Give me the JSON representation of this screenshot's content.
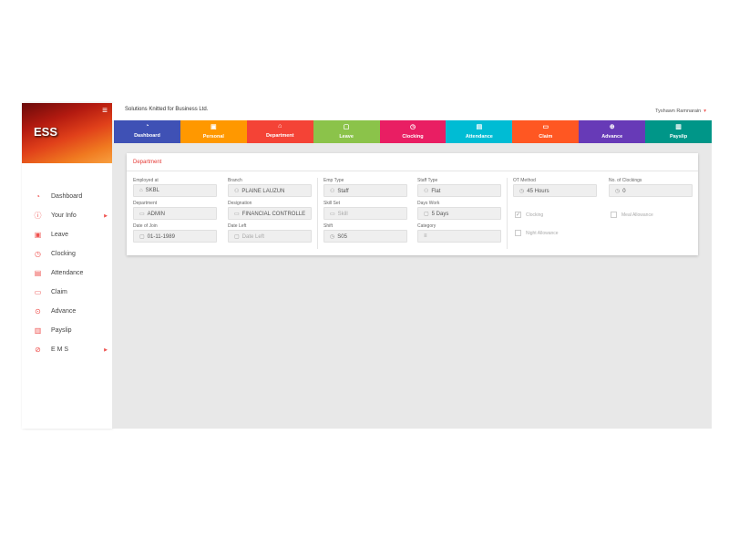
{
  "app": {
    "logo": "ESS",
    "company": "Solutions Knitted for Business Ltd.",
    "user": "Tyshawn Ramnarain"
  },
  "sidebar": {
    "items": [
      {
        "label": "Dashboard",
        "icon": "dashboard-icon",
        "glyph": "◔"
      },
      {
        "label": "Your Info",
        "icon": "info-icon",
        "glyph": "ⓘ",
        "submenu": true
      },
      {
        "label": "Leave",
        "icon": "calendar-icon",
        "glyph": "▣"
      },
      {
        "label": "Clocking",
        "icon": "clock-icon",
        "glyph": "◷"
      },
      {
        "label": "Attendance",
        "icon": "attendance-icon",
        "glyph": "▤"
      },
      {
        "label": "Claim",
        "icon": "card-icon",
        "glyph": "▭"
      },
      {
        "label": "Advance",
        "icon": "money-icon",
        "glyph": "⊙"
      },
      {
        "label": "Payslip",
        "icon": "payslip-icon",
        "glyph": "▥"
      },
      {
        "label": "E M S",
        "icon": "check-circle-icon",
        "glyph": "⊘",
        "submenu": true
      }
    ]
  },
  "tabs": [
    {
      "label": "Dashboard",
      "color": "#3f51b5",
      "glyph": "◔"
    },
    {
      "label": "Personal",
      "color": "#ff9800",
      "glyph": "▣"
    },
    {
      "label": "Department",
      "color": "#f44336",
      "glyph": "⌂"
    },
    {
      "label": "Leave",
      "color": "#8bc34a",
      "glyph": "▢"
    },
    {
      "label": "Clocking",
      "color": "#e91e63",
      "glyph": "◷"
    },
    {
      "label": "Attendance",
      "color": "#00bcd4",
      "glyph": "▤"
    },
    {
      "label": "Claim",
      "color": "#ff5722",
      "glyph": "▭"
    },
    {
      "label": "Advance",
      "color": "#673ab7",
      "glyph": "⊕"
    },
    {
      "label": "Payslip",
      "color": "#009688",
      "glyph": "▥"
    }
  ],
  "card": {
    "title": "Department",
    "fields": [
      {
        "label": "Employed at",
        "value": "SKBL",
        "glyph": "⌂"
      },
      {
        "label": "Branch",
        "value": "PLAINE LAUZUN",
        "glyph": "⚇"
      },
      {
        "label": "Emp Type",
        "value": "Staff",
        "glyph": "⚇"
      },
      {
        "label": "Staff Type",
        "value": "Flat",
        "glyph": "⚇"
      },
      {
        "label": "OT Method",
        "value": "45 Hours",
        "glyph": "◷"
      },
      {
        "label": "No. of Clockings",
        "value": "0",
        "glyph": "◷"
      },
      {
        "label": "Department",
        "value": "ADMIN",
        "glyph": "▭"
      },
      {
        "label": "Designation",
        "value": "FINANCIAL CONTROLLE",
        "glyph": "▭"
      },
      {
        "label": "Skill Set",
        "placeholder": "Skill",
        "glyph": "▭"
      },
      {
        "label": "Days Work",
        "value": "5 Days",
        "glyph": "▢"
      },
      {
        "label": "Date of Join",
        "value": "01-11-1989",
        "glyph": "▢"
      },
      {
        "label": "Date Left",
        "placeholder": "Date Left",
        "glyph": "▢"
      },
      {
        "label": "Shift",
        "value": "S05",
        "glyph": "◷"
      },
      {
        "label": "Category",
        "value": "",
        "glyph": "≡"
      }
    ],
    "checkboxes": [
      {
        "label": "Clocking",
        "checked": true
      },
      {
        "label": "Meal Allowance",
        "checked": false
      },
      {
        "label": "Night Allowance",
        "checked": false
      }
    ]
  }
}
